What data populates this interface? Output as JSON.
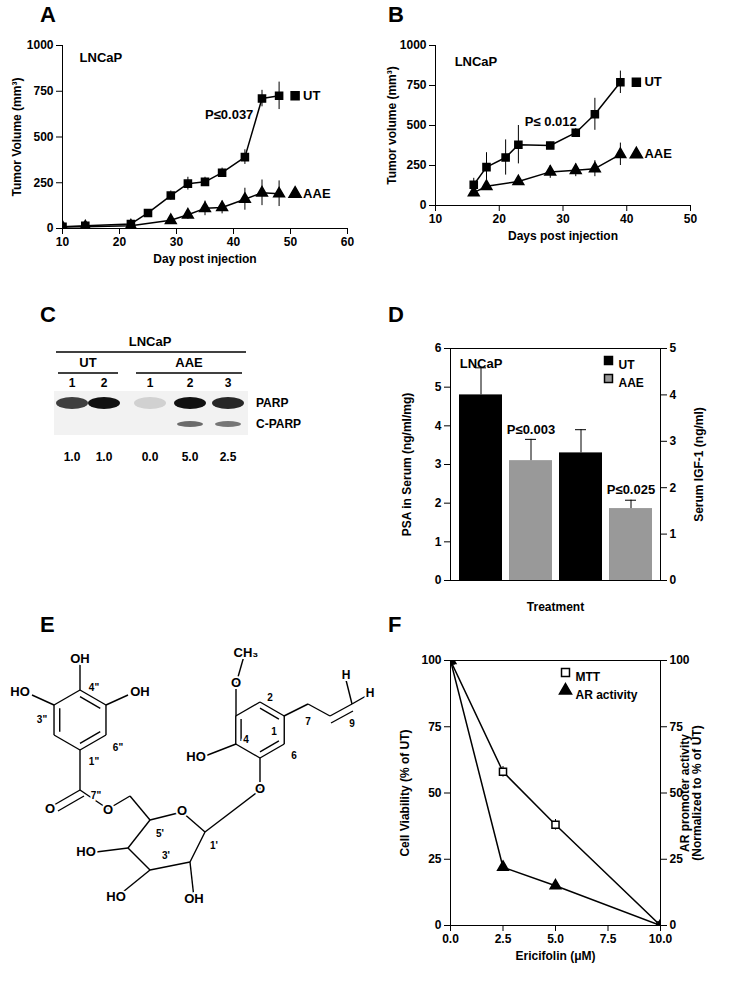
{
  "chart_data": [
    {
      "type": "line",
      "panel_label": "A",
      "x_label": "Day post injection",
      "y_label": "Tumor Volume (mm³)",
      "xlim": [
        10,
        60
      ],
      "xticks": [
        10,
        20,
        30,
        40,
        50,
        60
      ],
      "ylim": [
        0,
        1000
      ],
      "yticks": [
        0,
        250,
        500,
        750,
        1000
      ],
      "grid": false,
      "legend": "right",
      "series": [
        {
          "name": "UT",
          "color": "#000000",
          "marker": "square",
          "x": [
            10,
            14,
            22,
            25,
            29,
            32,
            35,
            38,
            42,
            45,
            48
          ],
          "values": [
            10,
            15,
            25,
            85,
            180,
            245,
            255,
            305,
            390,
            710,
            725
          ],
          "errors": [
            3,
            5,
            8,
            10,
            25,
            35,
            25,
            25,
            40,
            45,
            75
          ]
        },
        {
          "name": "AAE",
          "color": "#000000",
          "marker": "triangle",
          "x": [
            10,
            14,
            22,
            29,
            32,
            35,
            38,
            42,
            45,
            48
          ],
          "values": [
            8,
            10,
            15,
            45,
            75,
            110,
            115,
            160,
            195,
            190
          ],
          "errors": [
            3,
            3,
            5,
            15,
            25,
            40,
            35,
            60,
            70,
            70
          ]
        }
      ],
      "annotations": [
        {
          "text": "LNCaP",
          "x": 13,
          "y": 930
        },
        {
          "text": "P≤0.037",
          "x": 35,
          "y": 620
        }
      ]
    },
    {
      "type": "line",
      "panel_label": "B",
      "x_label": "Days post injection",
      "y_label": "Tumor volume (mm³)",
      "xlim": [
        10,
        50
      ],
      "xticks": [
        10,
        20,
        30,
        40,
        50
      ],
      "ylim": [
        0,
        1000
      ],
      "yticks": [
        0,
        250,
        500,
        750,
        1000
      ],
      "grid": false,
      "legend": "right",
      "series": [
        {
          "name": "UT",
          "color": "#000000",
          "marker": "square",
          "x": [
            16,
            18,
            21,
            23,
            28,
            32,
            35,
            39
          ],
          "values": [
            130,
            240,
            300,
            380,
            375,
            455,
            570,
            770
          ],
          "errors": [
            40,
            90,
            110,
            120,
            20,
            25,
            100,
            70
          ]
        },
        {
          "name": "AAE",
          "color": "#000000",
          "marker": "triangle",
          "x": [
            16,
            18,
            23,
            28,
            32,
            35,
            39
          ],
          "values": [
            80,
            120,
            150,
            210,
            220,
            230,
            320
          ],
          "errors": [
            10,
            15,
            15,
            40,
            40,
            50,
            70
          ]
        }
      ],
      "annotations": [
        {
          "text": "LNCaP",
          "x": 13,
          "y": 900
        },
        {
          "text": "P≤ 0.012",
          "x": 24,
          "y": 520
        }
      ]
    },
    {
      "type": "bar",
      "panel_label": "D",
      "x_label": "Treatment",
      "y_label": "PSA in Serum (ng/ml/mg)",
      "y2_label": "Serum IGF-1 (ng/ml)",
      "categories": [
        null,
        null
      ],
      "ylim": [
        0,
        6
      ],
      "yticks": [
        0,
        1,
        2,
        3,
        4,
        5,
        6
      ],
      "y2lim": [
        0,
        5
      ],
      "y2ticks": [
        0,
        1,
        2,
        3,
        4,
        5
      ],
      "grid": false,
      "legend": "top-right",
      "series": [
        {
          "name": "UT",
          "color": "#000000",
          "values": [
            4.8,
            null
          ],
          "errors": [
            0.7,
            null
          ]
        },
        {
          "name": "AAE",
          "color": "#999999",
          "values": [
            3.1,
            null
          ],
          "errors": [
            0.55,
            null
          ]
        },
        {
          "name": "UT",
          "color": "#000000",
          "axis": "y2",
          "values": [
            null,
            2.75
          ],
          "errors": [
            null,
            0.5
          ]
        },
        {
          "name": "AAE",
          "color": "#999999",
          "axis": "y2",
          "values": [
            null,
            1.55
          ],
          "errors": [
            null,
            0.18
          ]
        }
      ],
      "annotations": [
        {
          "text": "LNCaP",
          "category": 0,
          "series": "UT",
          "y": 5.6
        },
        {
          "text": "P≤0.003",
          "category": 0,
          "series": "AAE",
          "y": 3.9
        },
        {
          "text": "P≤0.025",
          "category": 1,
          "series": "AAE",
          "axis": "y2",
          "y": 1.95
        }
      ]
    },
    {
      "type": "line",
      "panel_label": "F",
      "x_label": "Ericifolin (μM)",
      "y_label": "Cell Viability (% of UT)",
      "y2_label": "AR promoter activity\n(Normalized to % of UT)",
      "xlim": [
        0,
        10
      ],
      "xticks": [
        {
          "value": 0,
          "label": "0.0"
        },
        2.5,
        {
          "value": 5,
          "label": "5.0"
        },
        7.5,
        {
          "value": 10,
          "label": "10.0"
        }
      ],
      "ylim": [
        0,
        100
      ],
      "yticks": [
        0,
        25,
        50,
        75,
        100
      ],
      "y2lim": [
        0,
        100
      ],
      "y2ticks": [
        0,
        25,
        50,
        75,
        100
      ],
      "grid": false,
      "legend": "top-right",
      "series": [
        {
          "name": "MTT",
          "color": "#000000",
          "marker": "open_square",
          "x": [
            0,
            2.5,
            5,
            10
          ],
          "values": [
            100,
            58,
            38,
            0
          ],
          "errors": [
            6,
            2,
            2,
            1
          ]
        },
        {
          "name": "AR activity",
          "color": "#000000",
          "marker": "triangle",
          "axis": "y2",
          "x": [
            0,
            2.5,
            5,
            10
          ],
          "values": [
            100,
            22,
            15,
            0
          ],
          "errors": [
            4,
            1,
            1,
            1
          ]
        }
      ]
    }
  ],
  "blot": {
    "panel_label": "C",
    "cell_line": "LNCaP",
    "groups": [
      {
        "name": "UT",
        "lanes": [
          "1",
          "2"
        ]
      },
      {
        "name": "AAE",
        "lanes": [
          "1",
          "2",
          "3"
        ]
      }
    ],
    "bands": [
      "PARP",
      "C-PARP"
    ],
    "parp_signal": [
      0.8,
      1.0,
      0.15,
      1.0,
      0.9
    ],
    "cparp_signal": [
      0,
      0,
      0,
      0.6,
      0.55
    ],
    "quantification": [
      "1.0",
      "1.0",
      "0.0",
      "5.0",
      "2.5"
    ]
  },
  "structure": {
    "panel_label": "E",
    "labels": [
      "OH",
      "4\"",
      "OH",
      "HO",
      "3\"",
      "6\"",
      "1\"",
      "O",
      "7\"",
      "O",
      "O",
      "5'",
      "1'",
      "3'",
      "HO",
      "HO",
      "OH",
      "O",
      "CH₃",
      "2",
      "HO",
      "4",
      "O",
      "6",
      "1",
      "7",
      "9",
      "H",
      "H"
    ]
  }
}
